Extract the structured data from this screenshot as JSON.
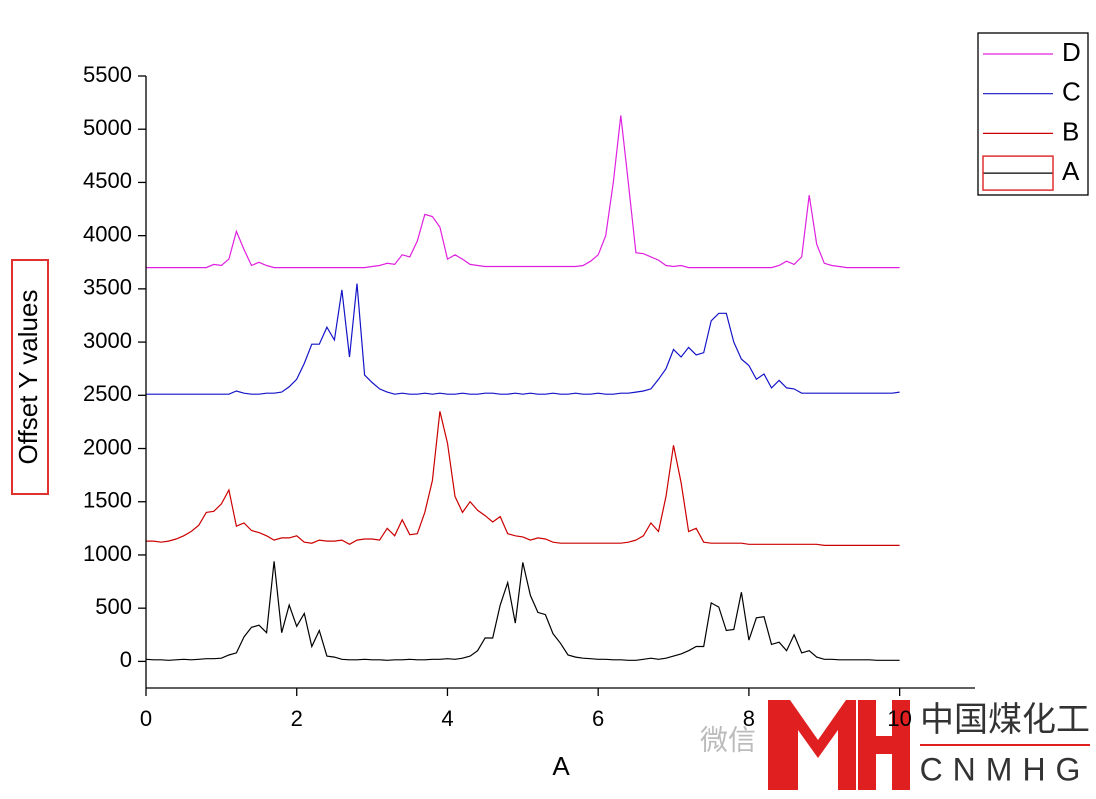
{
  "chart_data": {
    "type": "line",
    "xlabel": "A",
    "ylabel": "Offset Y values",
    "xlim": [
      0,
      11
    ],
    "ylim": [
      -250,
      5500
    ],
    "xticks": [
      0,
      2,
      4,
      6,
      8,
      10
    ],
    "yticks": [
      0,
      500,
      1000,
      1500,
      2000,
      2500,
      3000,
      3500,
      4000,
      4500,
      5000,
      5500
    ],
    "grid": false,
    "legend": "upper right",
    "x": [
      0,
      0.1,
      0.2,
      0.3,
      0.4,
      0.5,
      0.6,
      0.7,
      0.8,
      0.9,
      1,
      1.1,
      1.2,
      1.3,
      1.4,
      1.5,
      1.6,
      1.7,
      1.8,
      1.9,
      2,
      2.1,
      2.2,
      2.3,
      2.4,
      2.5,
      2.6,
      2.7,
      2.8,
      2.9,
      3,
      3.1,
      3.2,
      3.3,
      3.4,
      3.5,
      3.6,
      3.7,
      3.8,
      3.9,
      4,
      4.1,
      4.2,
      4.3,
      4.4,
      4.5,
      4.6,
      4.7,
      4.8,
      4.9,
      5,
      5.1,
      5.2,
      5.3,
      5.4,
      5.5,
      5.6,
      5.7,
      5.8,
      5.9,
      6,
      6.1,
      6.2,
      6.3,
      6.4,
      6.5,
      6.6,
      6.7,
      6.8,
      6.9,
      7,
      7.1,
      7.2,
      7.3,
      7.4,
      7.5,
      7.6,
      7.7,
      7.8,
      7.9,
      8,
      8.1,
      8.2,
      8.3,
      8.4,
      8.5,
      8.6,
      8.7,
      8.8,
      8.9,
      9,
      9.1,
      9.2,
      9.3,
      9.4,
      9.5,
      9.6,
      9.7,
      9.8,
      9.9,
      10
    ],
    "series": [
      {
        "name": "D",
        "color": "#e020e0",
        "values": [
          3700,
          3700,
          3700,
          3700,
          3700,
          3700,
          3700,
          3700,
          3700,
          3730,
          3720,
          3780,
          4040,
          3870,
          3720,
          3750,
          3720,
          3700,
          3700,
          3700,
          3700,
          3700,
          3700,
          3700,
          3700,
          3700,
          3700,
          3700,
          3700,
          3700,
          3710,
          3720,
          3740,
          3730,
          3820,
          3800,
          3950,
          4200,
          4180,
          4080,
          3780,
          3820,
          3780,
          3730,
          3720,
          3710,
          3710,
          3710,
          3710,
          3710,
          3710,
          3710,
          3710,
          3710,
          3710,
          3710,
          3710,
          3710,
          3720,
          3760,
          3820,
          4000,
          4500,
          5130,
          4500,
          3840,
          3830,
          3800,
          3770,
          3720,
          3710,
          3720,
          3700,
          3700,
          3700,
          3700,
          3700,
          3700,
          3700,
          3700,
          3700,
          3700,
          3700,
          3700,
          3720,
          3760,
          3730,
          3800,
          4380,
          3920,
          3740,
          3720,
          3710,
          3700,
          3700,
          3700,
          3700,
          3700,
          3700,
          3700,
          3700
        ]
      },
      {
        "name": "C",
        "color": "#1414c8",
        "values": [
          2510,
          2510,
          2510,
          2510,
          2510,
          2510,
          2510,
          2510,
          2510,
          2510,
          2510,
          2510,
          2540,
          2520,
          2510,
          2510,
          2520,
          2520,
          2530,
          2580,
          2650,
          2800,
          2980,
          2980,
          3140,
          3020,
          3490,
          2860,
          3550,
          2690,
          2620,
          2560,
          2530,
          2510,
          2520,
          2510,
          2510,
          2520,
          2510,
          2520,
          2510,
          2510,
          2520,
          2510,
          2510,
          2520,
          2520,
          2510,
          2510,
          2520,
          2510,
          2520,
          2510,
          2510,
          2520,
          2510,
          2510,
          2520,
          2510,
          2510,
          2520,
          2510,
          2510,
          2520,
          2520,
          2530,
          2540,
          2560,
          2650,
          2750,
          2930,
          2860,
          2950,
          2880,
          2900,
          3200,
          3270,
          3270,
          3000,
          2840,
          2780,
          2650,
          2700,
          2570,
          2640,
          2570,
          2560,
          2520,
          2520,
          2520,
          2520,
          2520,
          2520,
          2520,
          2520,
          2520,
          2520,
          2520,
          2520,
          2520,
          2530
        ]
      },
      {
        "name": "B",
        "color": "#cc0000",
        "values": [
          1130,
          1130,
          1120,
          1130,
          1150,
          1180,
          1220,
          1280,
          1400,
          1410,
          1480,
          1610,
          1270,
          1300,
          1230,
          1210,
          1180,
          1140,
          1160,
          1160,
          1180,
          1120,
          1110,
          1140,
          1130,
          1130,
          1140,
          1100,
          1140,
          1150,
          1150,
          1140,
          1250,
          1180,
          1330,
          1190,
          1200,
          1400,
          1700,
          2350,
          2050,
          1550,
          1400,
          1500,
          1420,
          1370,
          1310,
          1360,
          1200,
          1180,
          1170,
          1140,
          1160,
          1150,
          1120,
          1110,
          1110,
          1110,
          1110,
          1110,
          1110,
          1110,
          1110,
          1110,
          1120,
          1140,
          1180,
          1300,
          1220,
          1550,
          2030,
          1680,
          1220,
          1250,
          1120,
          1110,
          1110,
          1110,
          1110,
          1110,
          1100,
          1100,
          1100,
          1100,
          1100,
          1100,
          1100,
          1100,
          1100,
          1100,
          1090,
          1090,
          1090,
          1090,
          1090,
          1090,
          1090,
          1090,
          1090,
          1090,
          1090
        ]
      },
      {
        "name": "A",
        "color": "#000000",
        "values": [
          20,
          15,
          15,
          10,
          15,
          20,
          15,
          20,
          25,
          25,
          30,
          60,
          80,
          230,
          320,
          340,
          270,
          940,
          270,
          530,
          330,
          450,
          140,
          290,
          50,
          40,
          20,
          15,
          15,
          20,
          15,
          15,
          10,
          15,
          15,
          20,
          15,
          15,
          20,
          20,
          25,
          20,
          30,
          50,
          100,
          220,
          220,
          530,
          740,
          360,
          930,
          620,
          460,
          440,
          260,
          170,
          60,
          40,
          30,
          25,
          20,
          20,
          15,
          15,
          10,
          10,
          20,
          30,
          20,
          30,
          50,
          70,
          100,
          140,
          140,
          550,
          510,
          290,
          300,
          650,
          200,
          410,
          420,
          160,
          180,
          100,
          250,
          80,
          100,
          40,
          20,
          20,
          15,
          15,
          15,
          15,
          15,
          10,
          10,
          10,
          10
        ]
      }
    ]
  },
  "watermark": {
    "wechat": "微信",
    "brand": "中国煤化工",
    "letters": "CNMHG"
  }
}
